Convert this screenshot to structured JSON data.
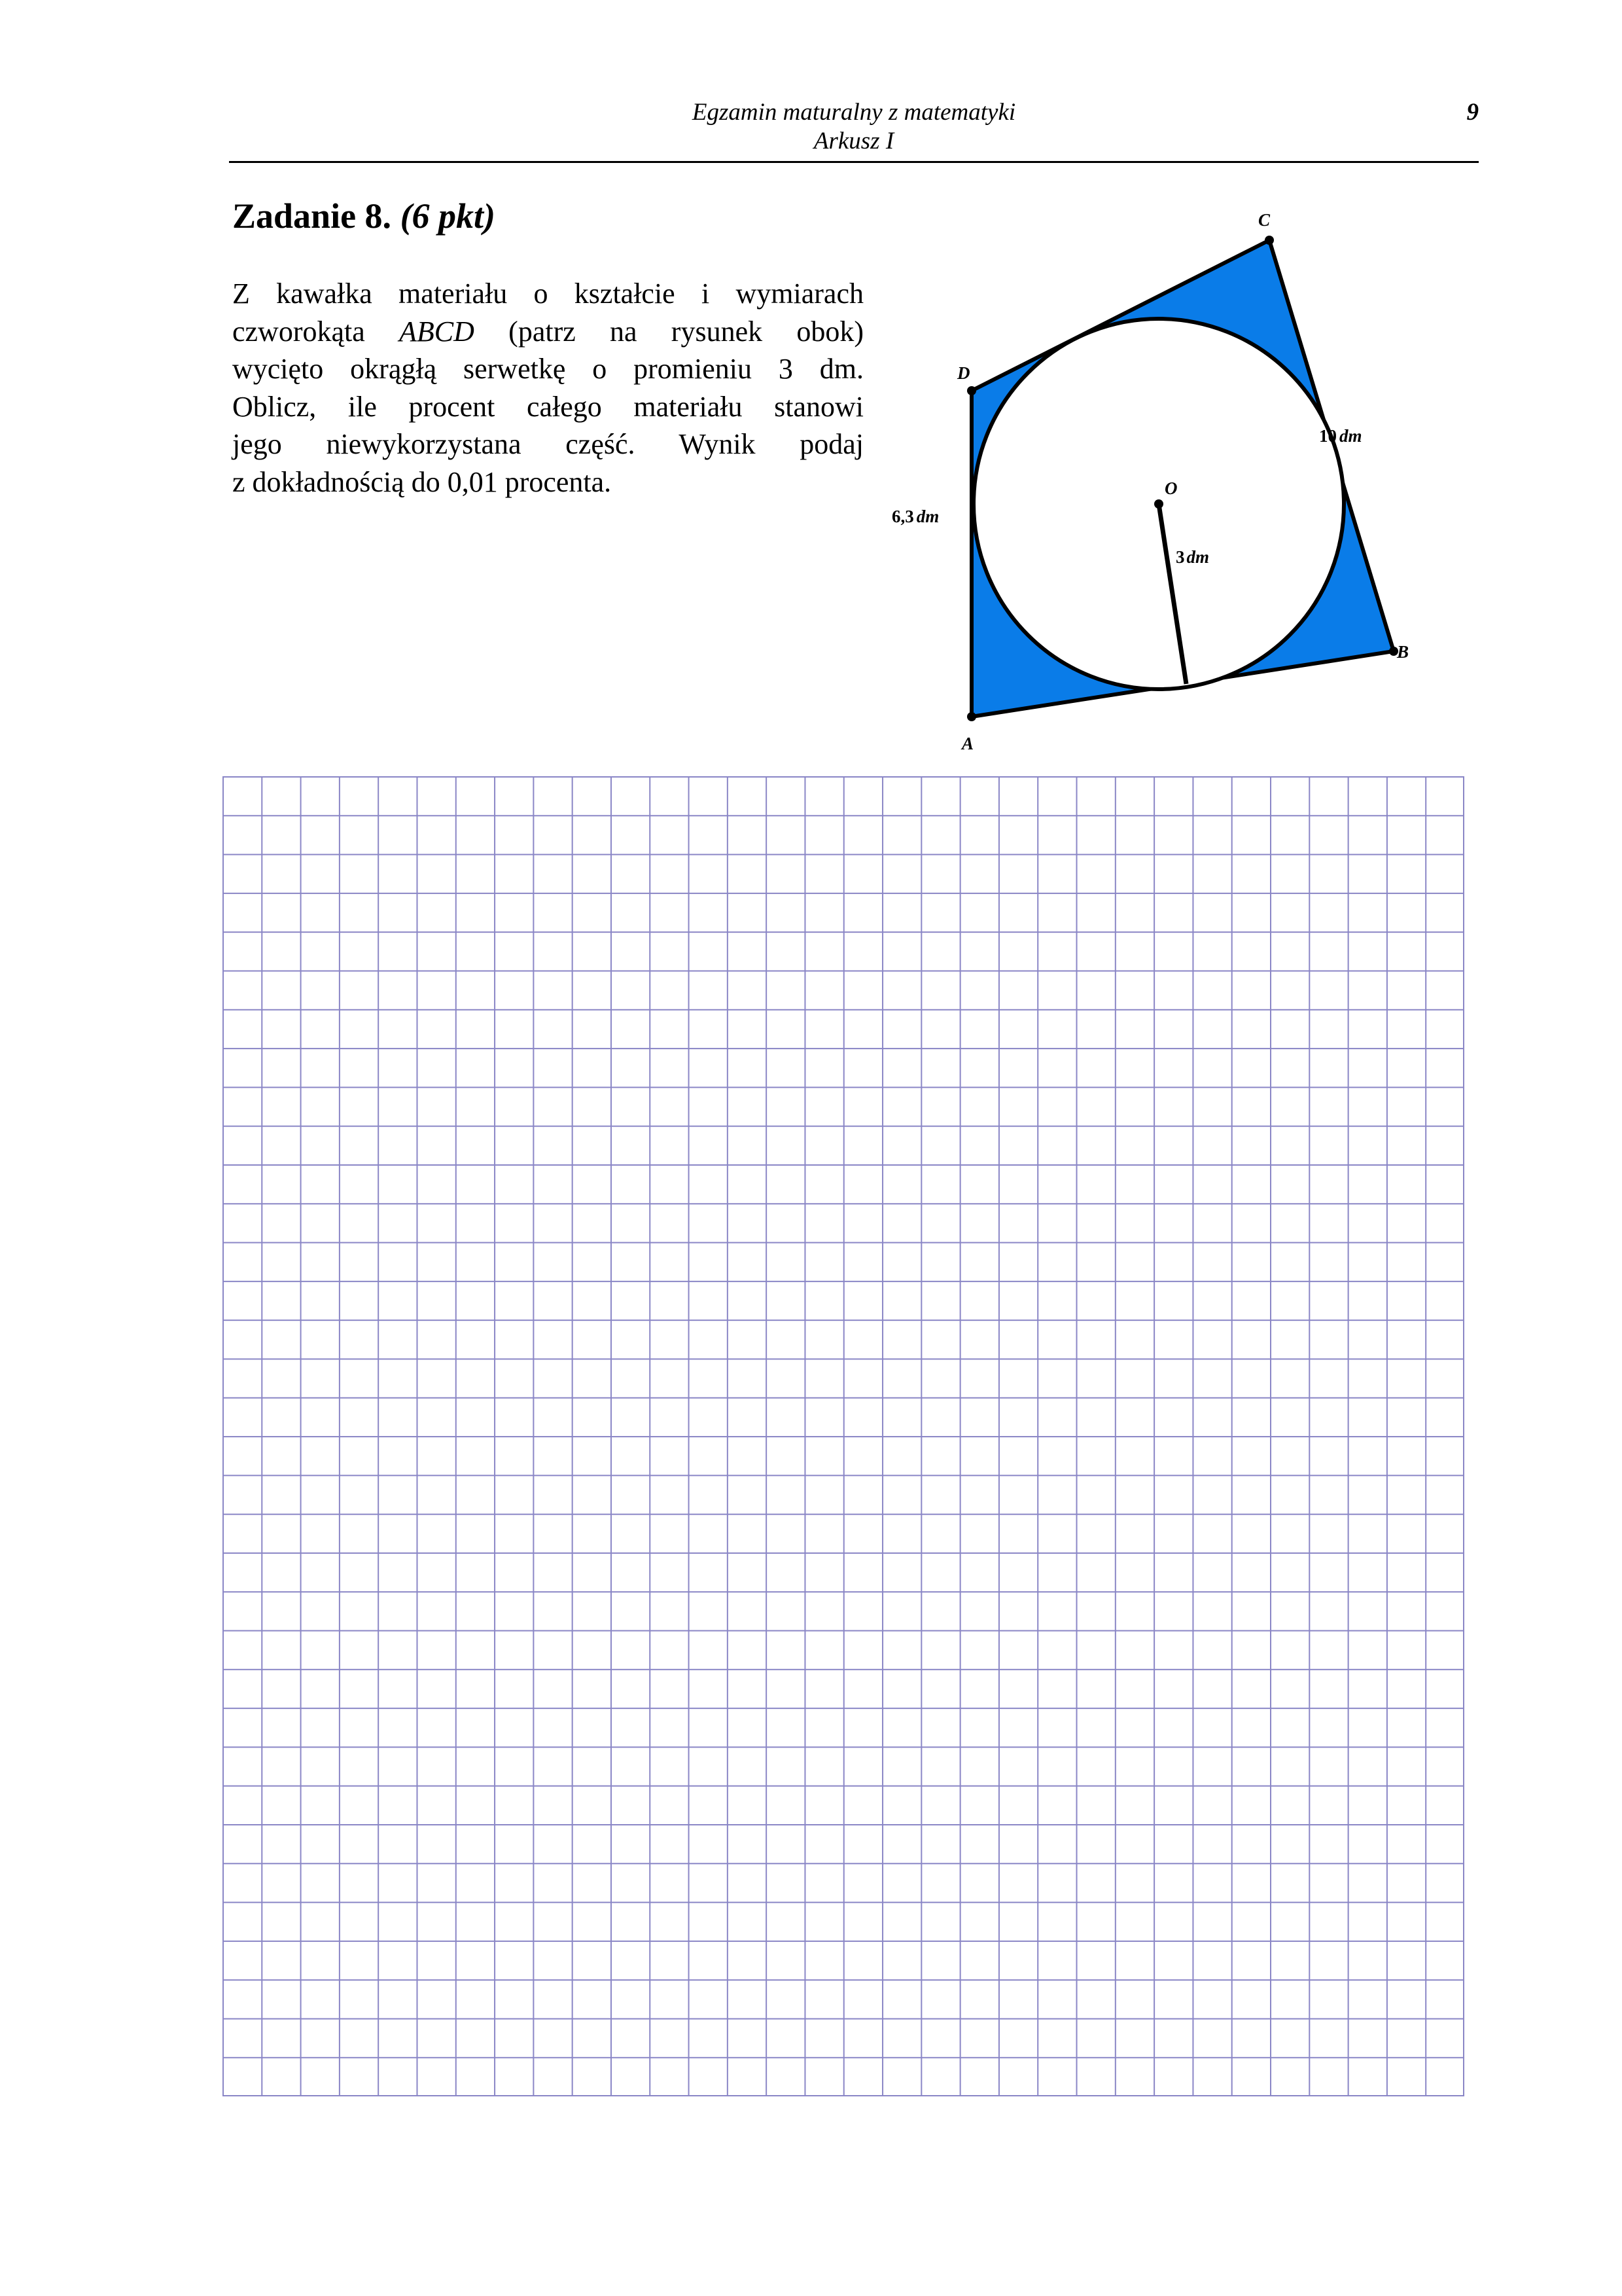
{
  "header": {
    "title": "Egzamin maturalny z matematyki",
    "subtitle": "Arkusz I",
    "page_number": "9"
  },
  "task": {
    "number_label": "Zadanie 8.",
    "points_label": "(6 pkt)",
    "lines": [
      [
        "Z kawałka materiału o kształcie i wymiarach"
      ],
      [
        "czworokąta ",
        "ABCD",
        " (patrz na rysunek obok)"
      ],
      [
        "wycięto okrągłą serwetkę o promieniu 3 dm."
      ],
      [
        "Oblicz, ile procent całego materiału stanowi"
      ],
      [
        "jego niewykorzystana część. Wynik podaj"
      ],
      [
        "z dokładnością do 0,01 procenta."
      ]
    ]
  },
  "figure": {
    "vertices": [
      "A",
      "B",
      "C",
      "D"
    ],
    "center_label": "O",
    "label_ad_value": "6,3",
    "label_bc_value": "10",
    "label_radius_value": "3",
    "unit": "dm",
    "colors": {
      "fill": "#0a7ce8",
      "circle": "#ffffff",
      "stroke": "#000000"
    }
  },
  "answer_grid": {
    "columns": 32,
    "rows": 34,
    "line_color": "#8a86c6"
  }
}
